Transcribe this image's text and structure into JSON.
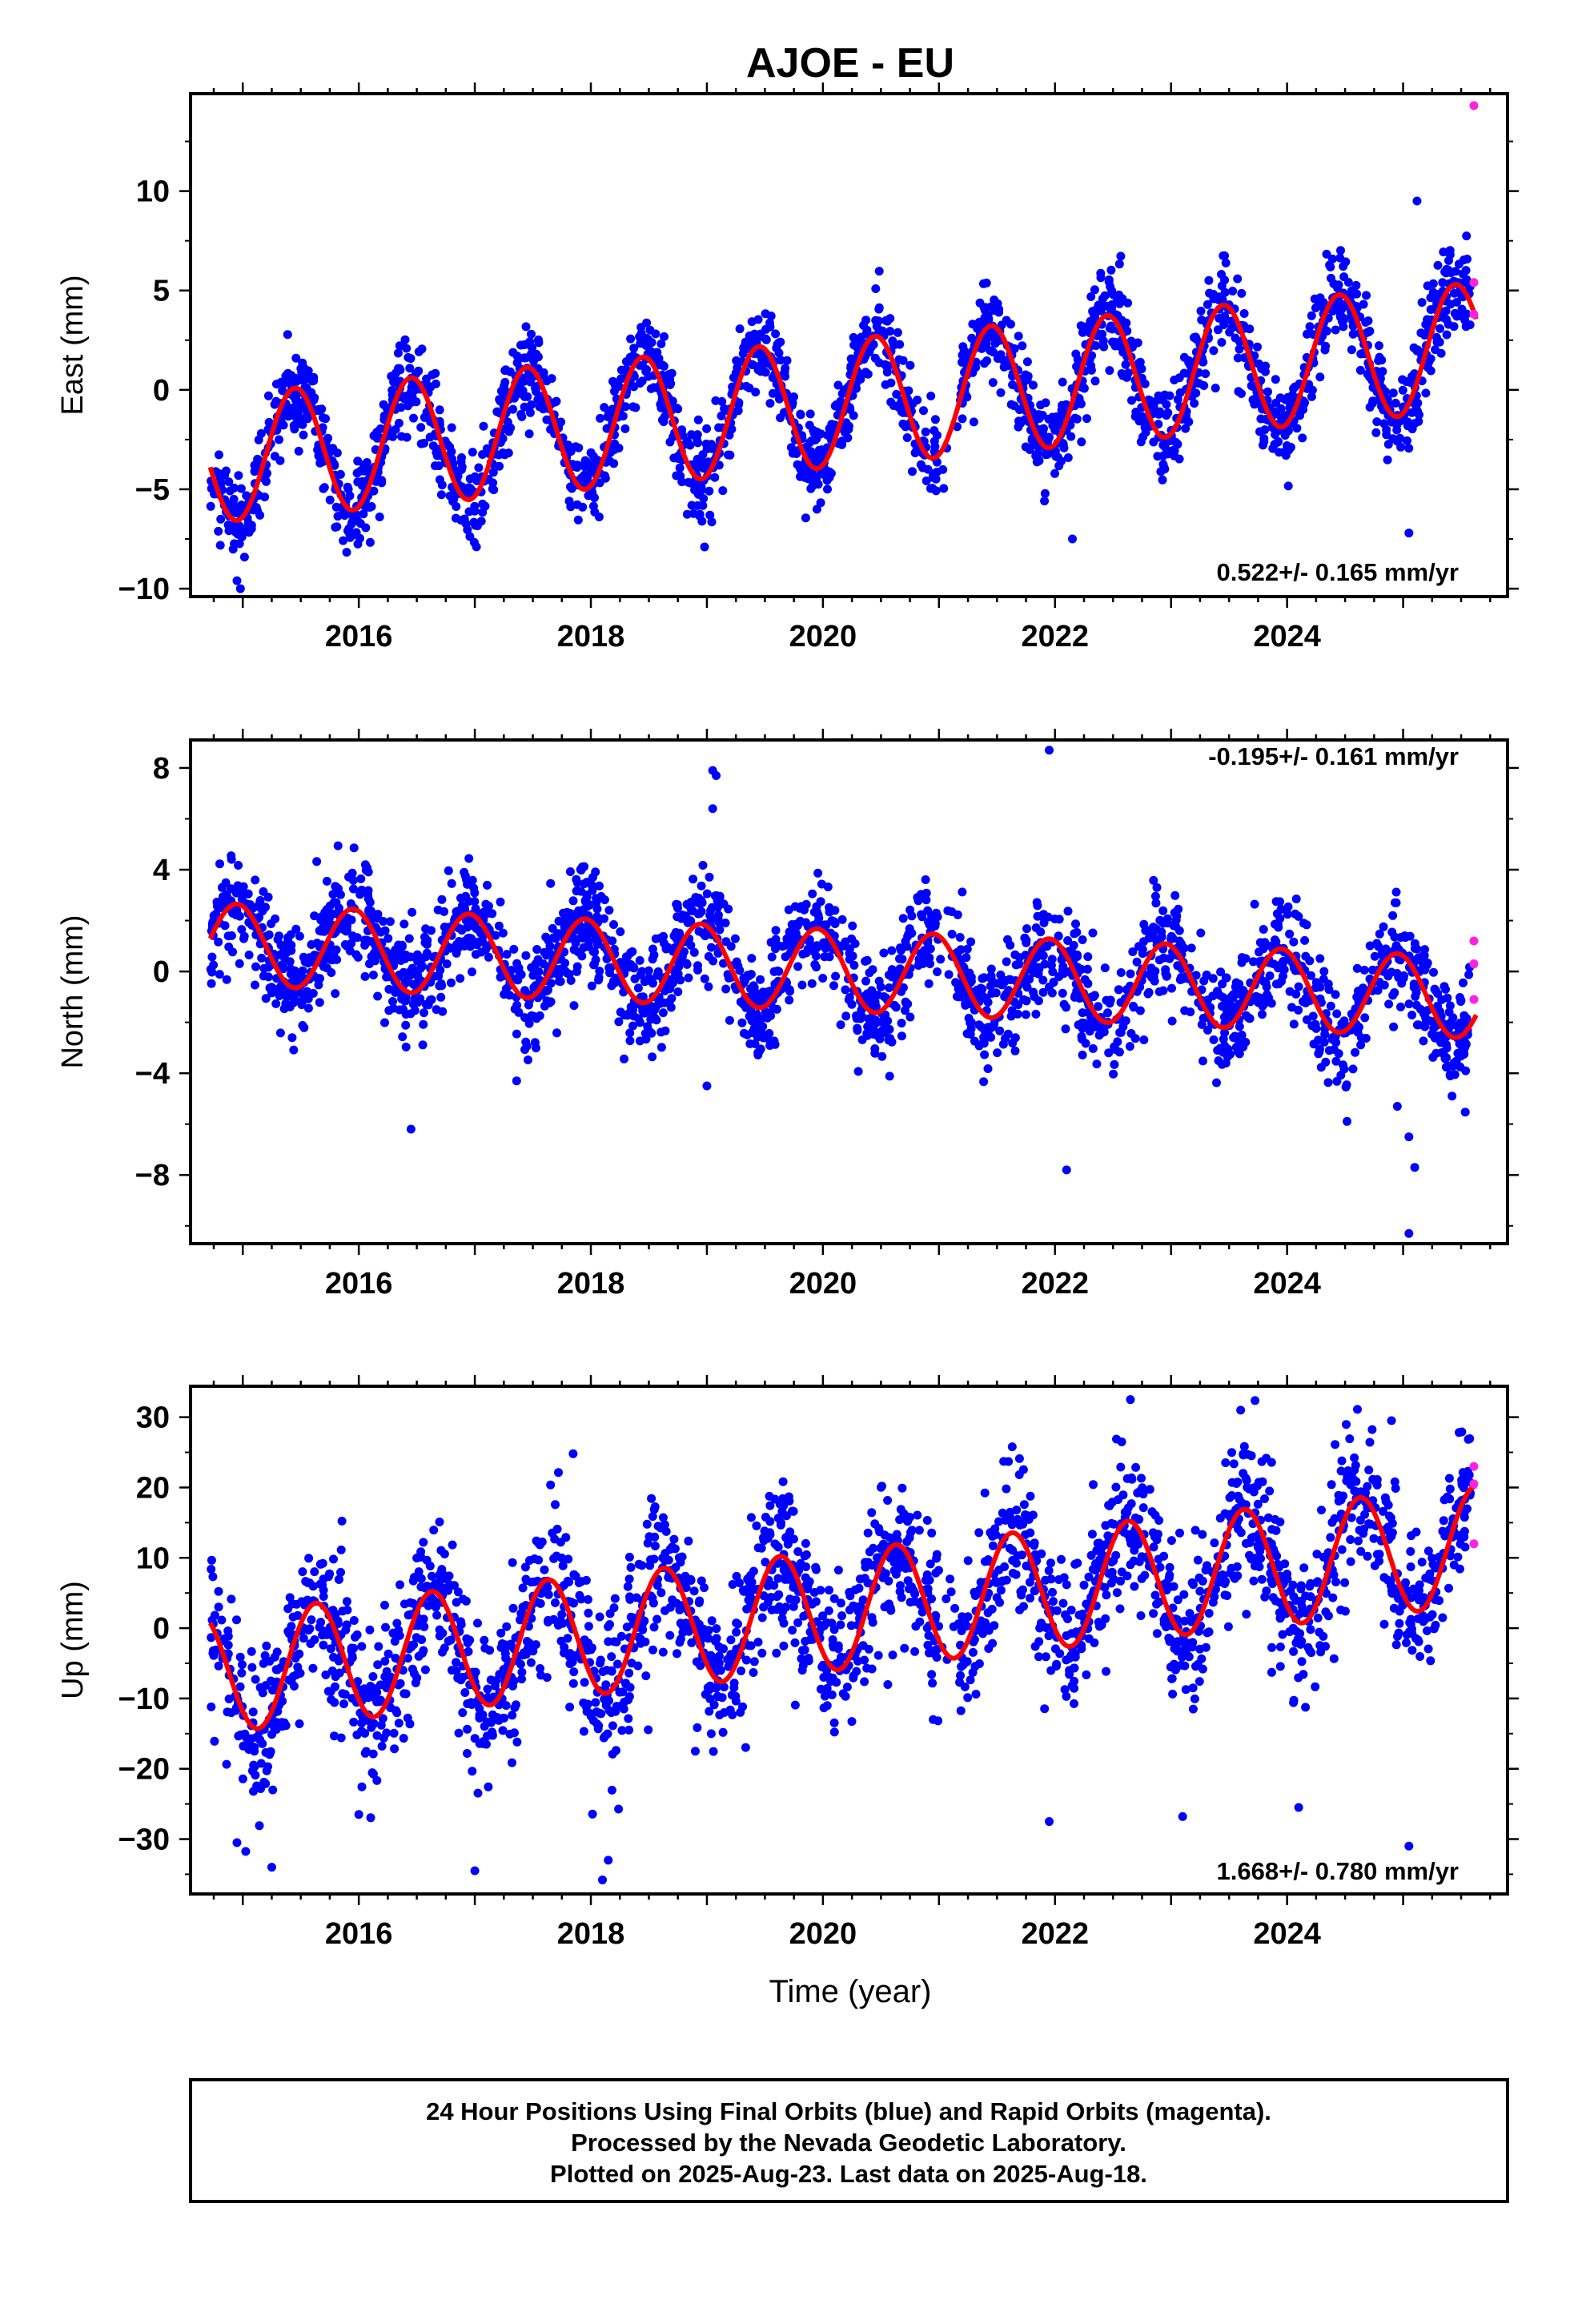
{
  "title": "AJOE - EU",
  "x_axis_label": "Time (year)",
  "footer": {
    "line1": "24 Hour Positions Using Final Orbits (blue) and Rapid Orbits (magenta).",
    "line2": "Processed by the Nevada Geodetic Laboratory.",
    "line3": "Plotted on 2025-Aug-23. Last data on 2025-Aug-18."
  },
  "colors": {
    "final_orbits": "#0000ff",
    "rapid_orbits": "#ff22dd",
    "model_fit": "#ff0000",
    "frame": "#000000"
  },
  "chart_data": [
    {
      "type": "scatter",
      "ylabel": "East (mm)",
      "rate_label": "0.522+/- 0.165 mm/yr",
      "xlim": [
        2014.55,
        2025.9
      ],
      "ylim": [
        -10.4,
        14.9
      ],
      "xticks": [
        2016,
        2018,
        2020,
        2022,
        2024
      ],
      "yticks": [
        -10,
        -5,
        0,
        5,
        10
      ],
      "series": [
        {
          "kind": "final_orbits",
          "x_range": [
            2014.72,
            2025.58
          ],
          "offset_at_2014_7": -3.5,
          "trend": 0.522,
          "annual_amplitude": 3.2,
          "annual_peak": 0.45,
          "scatter_sd": 1.15
        },
        {
          "kind": "model_fit",
          "x_range": [
            2014.72,
            2025.63
          ],
          "offset_at_2014_7": -3.5,
          "trend": 0.522,
          "annual_amplitude": 3.2,
          "annual_peak": 0.45
        }
      ],
      "outliers": [
        [
          2014.95,
          -9.6
        ],
        [
          2014.98,
          -10.0
        ],
        [
          2018.98,
          -7.9
        ],
        [
          2022.15,
          -7.5
        ],
        [
          2025.05,
          -7.2
        ],
        [
          2025.12,
          9.5
        ]
      ],
      "rapid_points": [
        [
          2025.61,
          14.3
        ],
        [
          2025.61,
          5.4
        ],
        [
          2025.61,
          3.8
        ]
      ]
    },
    {
      "type": "scatter",
      "ylabel": "North (mm)",
      "rate_label": "-0.195+/- 0.161 mm/yr",
      "xlim": [
        2014.55,
        2025.9
      ],
      "ylim": [
        -10.7,
        9.1
      ],
      "xticks": [
        2016,
        2018,
        2020,
        2022,
        2024
      ],
      "yticks": [
        -8,
        -4,
        0,
        4,
        8
      ],
      "series": [
        {
          "kind": "final_orbits",
          "x_range": [
            2014.72,
            2025.58
          ],
          "offset_at_2014_7": 1.1,
          "trend": -0.195,
          "annual_amplitude": 1.6,
          "annual_peak": 0.95,
          "scatter_sd": 1.05
        },
        {
          "kind": "model_fit",
          "x_range": [
            2014.72,
            2025.63
          ],
          "offset_at_2014_7": 1.1,
          "trend": -0.195,
          "annual_amplitude": 1.6,
          "annual_peak": 0.95
        }
      ],
      "outliers": [
        [
          2016.45,
          -6.2
        ],
        [
          2019.05,
          7.9
        ],
        [
          2019.08,
          7.7
        ],
        [
          2019.05,
          6.4
        ],
        [
          2021.95,
          8.7
        ],
        [
          2022.1,
          -7.8
        ],
        [
          2025.05,
          -10.3
        ],
        [
          2025.05,
          -6.5
        ],
        [
          2025.1,
          -7.7
        ],
        [
          2024.95,
          -5.3
        ],
        [
          2019.0,
          -4.5
        ]
      ],
      "rapid_points": [
        [
          2025.61,
          1.2
        ],
        [
          2025.61,
          0.3
        ],
        [
          2025.61,
          -1.1
        ]
      ]
    },
    {
      "type": "scatter",
      "ylabel": "Up (mm)",
      "rate_label": "1.668+/- 0.780 mm/yr",
      "xlim": [
        2014.55,
        2025.9
      ],
      "ylim": [
        -37.8,
        34.4
      ],
      "xticks": [
        2016,
        2018,
        2020,
        2022,
        2024
      ],
      "yticks": [
        -30,
        -20,
        -10,
        0,
        10,
        20,
        30
      ],
      "series": [
        {
          "kind": "final_orbits",
          "x_range": [
            2014.72,
            2025.58
          ],
          "offset_at_2014_7": -6.5,
          "trend": 1.668,
          "annual_amplitude": 8.5,
          "annual_peak": 0.63,
          "scatter_sd": 5.5
        },
        {
          "kind": "model_fit",
          "x_range": [
            2014.72,
            2025.63
          ],
          "offset_at_2014_7": -6.5,
          "trend": 1.668,
          "annual_amplitude": 8.5,
          "annual_peak": 0.63
        }
      ],
      "outliers": [
        [
          2014.95,
          -30.5
        ],
        [
          2015.25,
          -34.0
        ],
        [
          2016.0,
          -26.5
        ],
        [
          2017.0,
          -34.5
        ],
        [
          2018.1,
          -35.8
        ],
        [
          2018.15,
          -33.0
        ],
        [
          2021.95,
          -27.5
        ],
        [
          2023.1,
          -26.8
        ],
        [
          2024.1,
          -25.5
        ],
        [
          2025.05,
          -31.0
        ],
        [
          2022.65,
          32.5
        ],
        [
          2023.6,
          31.0
        ],
        [
          2024.9,
          29.5
        ],
        [
          2018.9,
          -17.5
        ],
        [
          2020.95,
          -13.0
        ]
      ],
      "rapid_points": [
        [
          2025.61,
          23.0
        ],
        [
          2025.61,
          20.5
        ],
        [
          2025.61,
          12.0
        ]
      ]
    }
  ]
}
